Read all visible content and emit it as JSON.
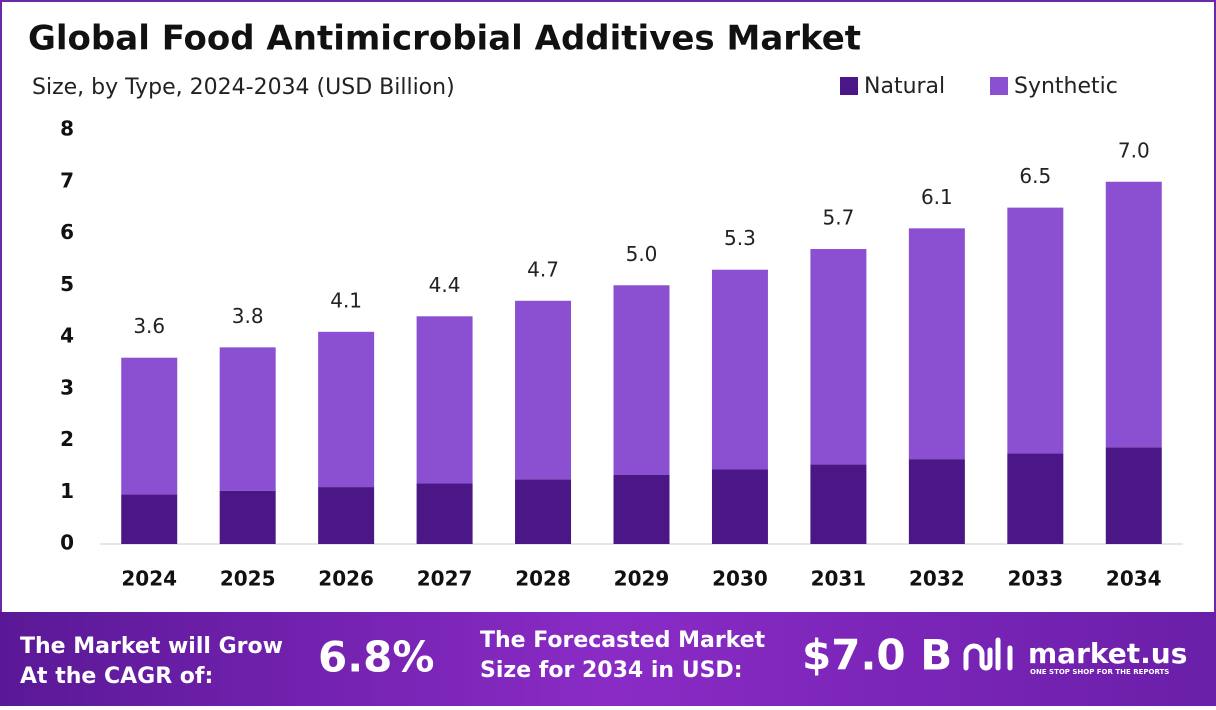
{
  "chart_data": {
    "type": "stacked_bar",
    "title": "Global Food Antimicrobial Additives Market",
    "subtitle": "Size, by Type, 2024-2034 (USD Billion)",
    "categories": [
      "2024",
      "2025",
      "2026",
      "2027",
      "2028",
      "2029",
      "2030",
      "2031",
      "2032",
      "2033",
      "2034"
    ],
    "series": [
      {
        "name": "Natural",
        "color": "#4b1786",
        "values": [
          0.96,
          1.03,
          1.1,
          1.17,
          1.25,
          1.34,
          1.44,
          1.54,
          1.64,
          1.75,
          1.87
        ]
      },
      {
        "name": "Synthetic",
        "color": "#8b50d1",
        "values": [
          2.64,
          2.77,
          3.0,
          3.23,
          3.45,
          3.66,
          3.86,
          4.16,
          4.46,
          4.75,
          5.13
        ]
      }
    ],
    "totals": [
      3.6,
      3.8,
      4.1,
      4.4,
      4.7,
      5.0,
      5.3,
      5.7,
      6.1,
      6.5,
      7.0
    ],
    "total_labels": [
      "3.6",
      "3.8",
      "4.1",
      "4.4",
      "4.7",
      "5.0",
      "5.3",
      "5.7",
      "6.1",
      "6.5",
      "7.0"
    ],
    "ylim": [
      0,
      8
    ],
    "yticks": [
      0,
      1,
      2,
      3,
      4,
      5,
      6,
      7,
      8
    ],
    "grid": false,
    "legend": "top-right"
  },
  "footer": {
    "cagr_text": [
      "The Market will Grow",
      "At the CAGR of:"
    ],
    "cagr_value": "6.8%",
    "forecast_text": [
      "The Forecasted Market",
      "Size for 2034 in USD:"
    ],
    "forecast_value": "$7.0 B",
    "brand": "market.us",
    "tagline": "ONE STOP SHOP FOR THE REPORTS"
  }
}
